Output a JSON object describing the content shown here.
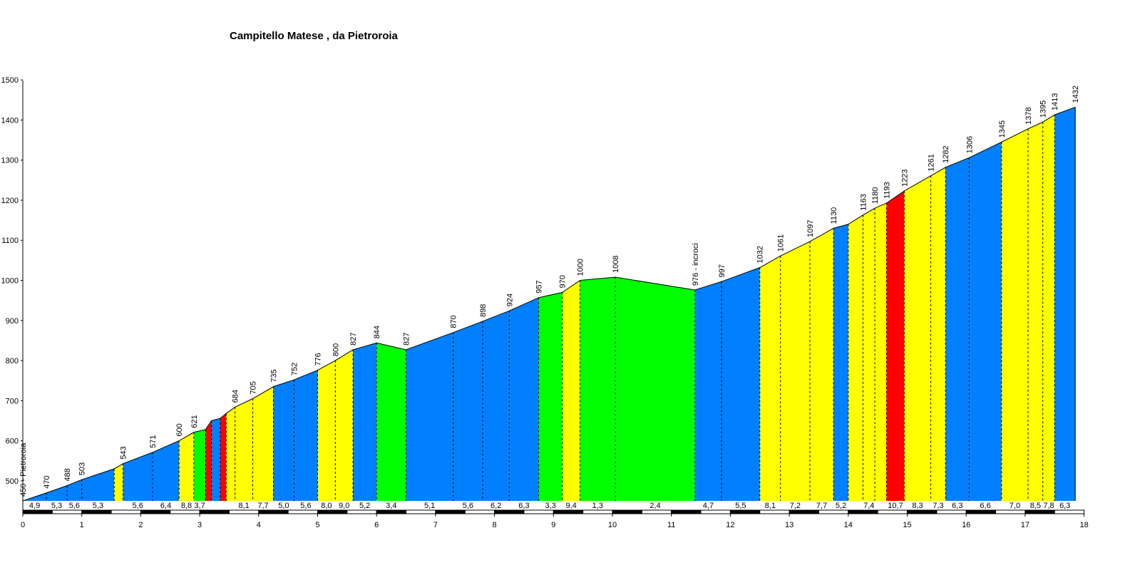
{
  "chart_data": {
    "type": "area",
    "title": "Campitello Matese , da Pietroroia",
    "xlabel": "",
    "ylabel": "",
    "xlim": [
      0,
      18
    ],
    "ylim": [
      450,
      1500
    ],
    "x_ticks": [
      "0",
      "1",
      "2",
      "3",
      "4",
      "5",
      "6",
      "7",
      "8",
      "9",
      "10",
      "11",
      "12",
      "13",
      "14",
      "15",
      "16",
      "17",
      "18"
    ],
    "y_ticks": [
      "500",
      "600",
      "700",
      "800",
      "900",
      "1000",
      "1100",
      "1200",
      "1300",
      "1400",
      "1500"
    ],
    "colors": {
      "blue": "#0080ff",
      "yellow": "#ffff00",
      "green": "#00ff00",
      "red": "#ff0000"
    },
    "points": [
      {
        "km": 0.0,
        "alt": 450,
        "label": "450 - Pietroroia"
      },
      {
        "km": 0.4,
        "alt": 470,
        "label": "470"
      },
      {
        "km": 0.75,
        "alt": 488,
        "label": "488"
      },
      {
        "km": 1.0,
        "alt": 503,
        "label": "503"
      },
      {
        "km": 1.55,
        "alt": 530,
        "label": ""
      },
      {
        "km": 1.7,
        "alt": 543,
        "label": "543"
      },
      {
        "km": 2.2,
        "alt": 571,
        "label": "571"
      },
      {
        "km": 2.65,
        "alt": 600,
        "label": "600"
      },
      {
        "km": 2.9,
        "alt": 621,
        "label": "621"
      },
      {
        "km": 3.1,
        "alt": 628,
        "label": ""
      },
      {
        "km": 3.2,
        "alt": 650,
        "label": ""
      },
      {
        "km": 3.35,
        "alt": 656,
        "label": ""
      },
      {
        "km": 3.45,
        "alt": 668,
        "label": ""
      },
      {
        "km": 3.6,
        "alt": 684,
        "label": "684"
      },
      {
        "km": 3.9,
        "alt": 705,
        "label": "705"
      },
      {
        "km": 4.25,
        "alt": 735,
        "label": "735"
      },
      {
        "km": 4.6,
        "alt": 752,
        "label": "752"
      },
      {
        "km": 5.0,
        "alt": 776,
        "label": "776"
      },
      {
        "km": 5.3,
        "alt": 800,
        "label": "800"
      },
      {
        "km": 5.6,
        "alt": 827,
        "label": "827"
      },
      {
        "km": 6.0,
        "alt": 844,
        "label": "844"
      },
      {
        "km": 6.5,
        "alt": 827,
        "label": "827"
      },
      {
        "km": 7.3,
        "alt": 870,
        "label": "870"
      },
      {
        "km": 7.8,
        "alt": 898,
        "label": "898"
      },
      {
        "km": 8.25,
        "alt": 924,
        "label": "924"
      },
      {
        "km": 8.75,
        "alt": 957,
        "label": "957"
      },
      {
        "km": 9.15,
        "alt": 970,
        "label": "970"
      },
      {
        "km": 9.45,
        "alt": 1000,
        "label": "1000"
      },
      {
        "km": 10.05,
        "alt": 1008,
        "label": "1008"
      },
      {
        "km": 11.4,
        "alt": 976,
        "label": "976 - incroci"
      },
      {
        "km": 11.85,
        "alt": 997,
        "label": "997"
      },
      {
        "km": 12.5,
        "alt": 1032,
        "label": "1032"
      },
      {
        "km": 12.85,
        "alt": 1061,
        "label": "1061"
      },
      {
        "km": 13.35,
        "alt": 1097,
        "label": "1097"
      },
      {
        "km": 13.75,
        "alt": 1130,
        "label": "1130"
      },
      {
        "km": 14.0,
        "alt": 1140,
        "label": ""
      },
      {
        "km": 14.25,
        "alt": 1163,
        "label": "1163"
      },
      {
        "km": 14.45,
        "alt": 1180,
        "label": "1180"
      },
      {
        "km": 14.65,
        "alt": 1193,
        "label": "1193"
      },
      {
        "km": 14.95,
        "alt": 1223,
        "label": "1223"
      },
      {
        "km": 15.4,
        "alt": 1261,
        "label": "1261"
      },
      {
        "km": 15.65,
        "alt": 1282,
        "label": "1282"
      },
      {
        "km": 16.05,
        "alt": 1306,
        "label": "1306"
      },
      {
        "km": 16.6,
        "alt": 1345,
        "label": "1345"
      },
      {
        "km": 17.05,
        "alt": 1378,
        "label": "1378"
      },
      {
        "km": 17.3,
        "alt": 1395,
        "label": "1395"
      },
      {
        "km": 17.5,
        "alt": 1413,
        "label": "1413"
      },
      {
        "km": 17.85,
        "alt": 1432,
        "label": "1432"
      }
    ],
    "segments": [
      {
        "from": 0.0,
        "to": 0.4,
        "color": "blue",
        "grade": "4,9"
      },
      {
        "from": 0.4,
        "to": 0.75,
        "color": "blue",
        "grade": "5,3"
      },
      {
        "from": 0.75,
        "to": 1.0,
        "color": "blue",
        "grade": "5,6"
      },
      {
        "from": 1.0,
        "to": 1.55,
        "color": "blue",
        "grade": "5,3"
      },
      {
        "from": 1.55,
        "to": 1.7,
        "color": "yellow",
        "grade": ""
      },
      {
        "from": 1.7,
        "to": 2.2,
        "color": "blue",
        "grade": "5,6"
      },
      {
        "from": 2.2,
        "to": 2.65,
        "color": "blue",
        "grade": "6,4"
      },
      {
        "from": 2.65,
        "to": 2.9,
        "color": "yellow",
        "grade": "8,8"
      },
      {
        "from": 2.9,
        "to": 3.1,
        "color": "green",
        "grade": "3,7"
      },
      {
        "from": 3.1,
        "to": 3.2,
        "color": "red",
        "grade": ""
      },
      {
        "from": 3.2,
        "to": 3.35,
        "color": "blue",
        "grade": ""
      },
      {
        "from": 3.35,
        "to": 3.45,
        "color": "red",
        "grade": ""
      },
      {
        "from": 3.45,
        "to": 3.6,
        "color": "yellow",
        "grade": ""
      },
      {
        "from": 3.6,
        "to": 3.9,
        "color": "yellow",
        "grade": "8,1"
      },
      {
        "from": 3.9,
        "to": 4.25,
        "color": "yellow",
        "grade": "7,7"
      },
      {
        "from": 4.25,
        "to": 4.6,
        "color": "blue",
        "grade": "5,0"
      },
      {
        "from": 4.6,
        "to": 5.0,
        "color": "blue",
        "grade": "5,6"
      },
      {
        "from": 5.0,
        "to": 5.3,
        "color": "yellow",
        "grade": "8,0"
      },
      {
        "from": 5.3,
        "to": 5.6,
        "color": "yellow",
        "grade": "9,0"
      },
      {
        "from": 5.6,
        "to": 6.0,
        "color": "blue",
        "grade": "5,2"
      },
      {
        "from": 6.0,
        "to": 6.5,
        "color": "green",
        "grade": "3,4"
      },
      {
        "from": 6.5,
        "to": 7.3,
        "color": "blue",
        "grade": "5,1"
      },
      {
        "from": 7.3,
        "to": 7.8,
        "color": "blue",
        "grade": "5,6"
      },
      {
        "from": 7.8,
        "to": 8.25,
        "color": "blue",
        "grade": "6,2"
      },
      {
        "from": 8.25,
        "to": 8.75,
        "color": "blue",
        "grade": "6,3"
      },
      {
        "from": 8.75,
        "to": 9.15,
        "color": "green",
        "grade": "3,3"
      },
      {
        "from": 9.15,
        "to": 9.45,
        "color": "yellow",
        "grade": "9,4"
      },
      {
        "from": 9.45,
        "to": 10.05,
        "color": "green",
        "grade": "1,3"
      },
      {
        "from": 10.05,
        "to": 11.4,
        "color": "green",
        "grade": "2,4"
      },
      {
        "from": 11.4,
        "to": 11.85,
        "color": "blue",
        "grade": "4,7"
      },
      {
        "from": 11.85,
        "to": 12.5,
        "color": "blue",
        "grade": "5,5"
      },
      {
        "from": 12.5,
        "to": 12.85,
        "color": "yellow",
        "grade": "8,1"
      },
      {
        "from": 12.85,
        "to": 13.35,
        "color": "yellow",
        "grade": "7,2"
      },
      {
        "from": 13.35,
        "to": 13.75,
        "color": "yellow",
        "grade": "7,7"
      },
      {
        "from": 13.75,
        "to": 14.0,
        "color": "blue",
        "grade": "5,2"
      },
      {
        "from": 14.0,
        "to": 14.25,
        "color": "yellow",
        "grade": ""
      },
      {
        "from": 14.25,
        "to": 14.45,
        "color": "yellow",
        "grade": "7,4"
      },
      {
        "from": 14.45,
        "to": 14.65,
        "color": "yellow",
        "grade": ""
      },
      {
        "from": 14.65,
        "to": 14.95,
        "color": "red",
        "grade": "10,7"
      },
      {
        "from": 14.95,
        "to": 15.4,
        "color": "yellow",
        "grade": "8,3"
      },
      {
        "from": 15.4,
        "to": 15.65,
        "color": "yellow",
        "grade": "7,3"
      },
      {
        "from": 15.65,
        "to": 16.05,
        "color": "blue",
        "grade": "6,3"
      },
      {
        "from": 16.05,
        "to": 16.6,
        "color": "blue",
        "grade": "6,6"
      },
      {
        "from": 16.6,
        "to": 17.05,
        "color": "yellow",
        "grade": "7,0"
      },
      {
        "from": 17.05,
        "to": 17.3,
        "color": "yellow",
        "grade": "8,5"
      },
      {
        "from": 17.3,
        "to": 17.5,
        "color": "yellow",
        "grade": "7,8"
      },
      {
        "from": 17.5,
        "to": 17.85,
        "color": "blue",
        "grade": "6,3"
      }
    ],
    "grid": false,
    "legend": "none"
  }
}
